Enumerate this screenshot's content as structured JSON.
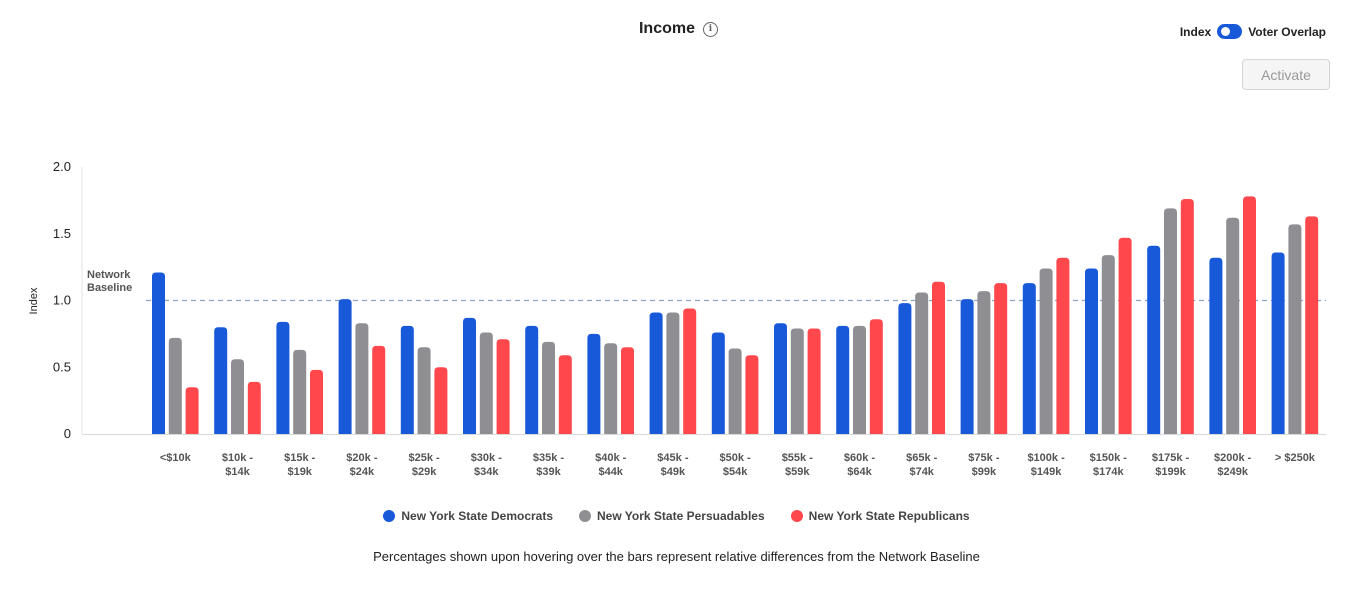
{
  "header": {
    "title": "Income",
    "info_icon": "info-icon"
  },
  "toggle": {
    "left_label": "Index",
    "right_label": "Voter Overlap",
    "state": "on",
    "color": "#1759d9"
  },
  "activate_button": {
    "label": "Activate",
    "disabled": true
  },
  "footnote": "Percentages shown upon hovering over the bars represent relative differences from the Network Baseline",
  "chart_data": {
    "type": "bar",
    "ylabel": "Index",
    "ylim": [
      0,
      2.0
    ],
    "yticks": [
      "0",
      "0.5",
      "1.0",
      "1.5",
      "2.0"
    ],
    "ytick_values": [
      0,
      0.5,
      1.0,
      1.5,
      2.0
    ],
    "baseline": {
      "label_line1": "Network",
      "label_line2": "Baseline",
      "value": 1.0
    },
    "categories": [
      [
        "<$10k"
      ],
      [
        "$10k -",
        "$14k"
      ],
      [
        "$15k -",
        "$19k"
      ],
      [
        "$20k -",
        "$24k"
      ],
      [
        "$25k -",
        "$29k"
      ],
      [
        "$30k -",
        "$34k"
      ],
      [
        "$35k -",
        "$39k"
      ],
      [
        "$40k -",
        "$44k"
      ],
      [
        "$45k -",
        "$49k"
      ],
      [
        "$50k -",
        "$54k"
      ],
      [
        "$55k -",
        "$59k"
      ],
      [
        "$60k -",
        "$64k"
      ],
      [
        "$65k -",
        "$74k"
      ],
      [
        "$75k -",
        "$99k"
      ],
      [
        "$100k -",
        "$149k"
      ],
      [
        "$150k -",
        "$174k"
      ],
      [
        "$175k -",
        "$199k"
      ],
      [
        "$200k -",
        "$249k"
      ],
      [
        "> $250k"
      ]
    ],
    "series": [
      {
        "name": "New York State Democrats",
        "color": "#1759d9",
        "values": [
          1.21,
          0.8,
          0.84,
          1.01,
          0.81,
          0.87,
          0.81,
          0.75,
          0.91,
          0.76,
          0.83,
          0.81,
          0.98,
          1.01,
          1.13,
          1.24,
          1.41,
          1.32,
          1.36
        ]
      },
      {
        "name": "New York State Persuadables",
        "color": "#8e8e93",
        "values": [
          0.72,
          0.56,
          0.63,
          0.83,
          0.65,
          0.76,
          0.69,
          0.68,
          0.91,
          0.64,
          0.79,
          0.81,
          1.06,
          1.07,
          1.24,
          1.34,
          1.69,
          1.62,
          1.57
        ]
      },
      {
        "name": "New York State Republicans",
        "color": "#ff474c",
        "values": [
          0.35,
          0.39,
          0.48,
          0.66,
          0.5,
          0.71,
          0.59,
          0.65,
          0.94,
          0.59,
          0.79,
          0.86,
          1.14,
          1.13,
          1.32,
          1.47,
          1.76,
          1.78,
          1.63
        ]
      }
    ]
  }
}
